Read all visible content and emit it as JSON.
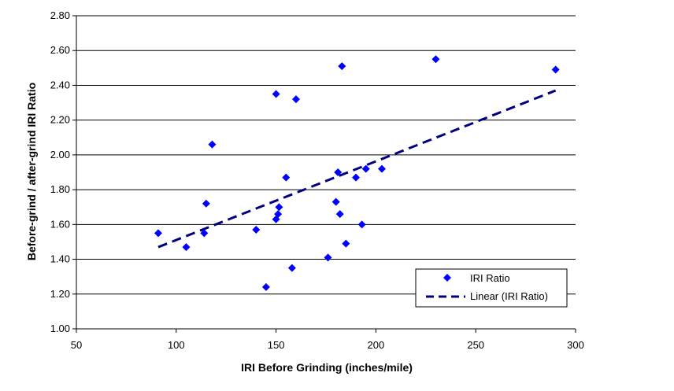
{
  "chart_data": {
    "type": "scatter",
    "title": "",
    "xlabel": "IRI Before Grinding (inches/mile)",
    "ylabel": "Before-grind / after-grind IRI Ratio",
    "xlim": [
      50,
      300
    ],
    "ylim": [
      1.0,
      2.8
    ],
    "x_ticks": [
      50,
      100,
      150,
      200,
      250,
      300
    ],
    "y_ticks": [
      "1.00",
      "1.20",
      "1.40",
      "1.60",
      "1.80",
      "2.00",
      "2.20",
      "2.40",
      "2.60",
      "2.80"
    ],
    "grid": "horizontal",
    "legend_position": "bottom-right",
    "colors": {
      "points": "#0000ff",
      "trend": "#000080"
    },
    "series": [
      {
        "name": "IRI Ratio",
        "kind": "points",
        "points": [
          {
            "x": 91,
            "y": 1.55
          },
          {
            "x": 105,
            "y": 1.47
          },
          {
            "x": 114,
            "y": 1.55
          },
          {
            "x": 115,
            "y": 1.72
          },
          {
            "x": 118,
            "y": 2.06
          },
          {
            "x": 140,
            "y": 1.57
          },
          {
            "x": 145,
            "y": 1.24
          },
          {
            "x": 150,
            "y": 2.35
          },
          {
            "x": 150,
            "y": 1.63
          },
          {
            "x": 151,
            "y": 1.66
          },
          {
            "x": 151.5,
            "y": 1.7
          },
          {
            "x": 155,
            "y": 1.87
          },
          {
            "x": 158,
            "y": 1.35
          },
          {
            "x": 160,
            "y": 2.32
          },
          {
            "x": 176,
            "y": 1.41
          },
          {
            "x": 180,
            "y": 1.73
          },
          {
            "x": 181,
            "y": 1.9
          },
          {
            "x": 182,
            "y": 1.66
          },
          {
            "x": 183,
            "y": 2.51
          },
          {
            "x": 185,
            "y": 1.49
          },
          {
            "x": 190,
            "y": 1.87
          },
          {
            "x": 193,
            "y": 1.6
          },
          {
            "x": 195,
            "y": 1.92
          },
          {
            "x": 203,
            "y": 1.92
          },
          {
            "x": 230,
            "y": 2.55
          },
          {
            "x": 290,
            "y": 2.49
          }
        ]
      },
      {
        "name": "Linear (IRI Ratio)",
        "kind": "trendline",
        "points": [
          {
            "x": 91,
            "y": 1.47
          },
          {
            "x": 290,
            "y": 2.37
          }
        ]
      }
    ]
  }
}
